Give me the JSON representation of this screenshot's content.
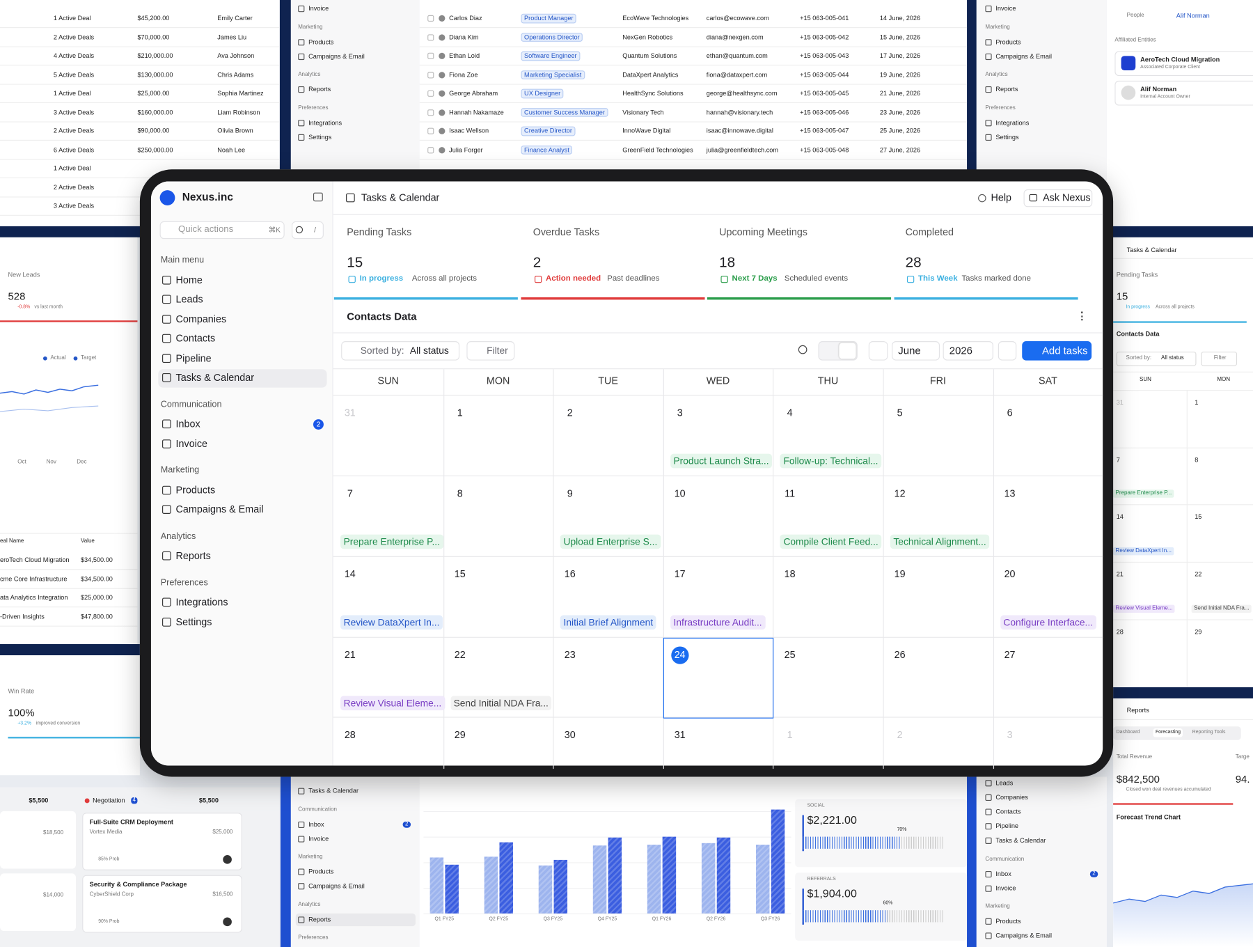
{
  "sidebar": {
    "brand": "Nexus.inc",
    "quick_actions": "Quick actions",
    "shortcut": "⌘K",
    "slash": "/",
    "active": "Tasks & Calendar",
    "inbox_badge": 2,
    "sections": [
      {
        "title": "Main menu",
        "items": [
          "Home",
          "Leads",
          "Companies",
          "Contacts",
          "Pipeline",
          "Tasks & Calendar"
        ]
      },
      {
        "title": "Communication",
        "items": [
          "Inbox",
          "Invoice"
        ]
      },
      {
        "title": "Marketing",
        "items": [
          "Products",
          "Campaigns & Email"
        ]
      },
      {
        "title": "Analytics",
        "items": [
          "Reports"
        ]
      },
      {
        "title": "Preferences",
        "items": [
          "Integrations",
          "Settings"
        ]
      }
    ]
  },
  "header": {
    "title": "Tasks & Calendar",
    "help": "Help",
    "ask": "Ask Nexus"
  },
  "stats": [
    {
      "label": "Pending Tasks",
      "value": 15,
      "tag": "In progress",
      "note": "Across all projects",
      "color": "#3bb0e0"
    },
    {
      "label": "Overdue Tasks",
      "value": 2,
      "tag": "Action needed",
      "note": "Past deadlines",
      "color": "#e03b3b"
    },
    {
      "label": "Upcoming Meetings",
      "value": 18,
      "tag": "Next 7 Days",
      "note": "Scheduled events",
      "color": "#2a9d4a"
    },
    {
      "label": "Completed",
      "value": 28,
      "tag": "This Week",
      "note": "Tasks marked done",
      "color": "#3bb0e0"
    }
  ],
  "panel": {
    "title": "Contacts Data",
    "sorted_label": "Sorted by:",
    "sorted_value": "All status",
    "filter": "Filter",
    "month": "June",
    "year": 2026,
    "add": "Add tasks"
  },
  "calendar": {
    "weekdays": [
      "SUN",
      "MON",
      "TUE",
      "WED",
      "THU",
      "FRI",
      "SAT"
    ],
    "weeks": [
      [
        {
          "day": 31,
          "muted": true
        },
        {
          "day": 1
        },
        {
          "day": 2
        },
        {
          "day": 3,
          "event": {
            "text": "Product Launch Stra...",
            "color": "green"
          }
        },
        {
          "day": 4,
          "event": {
            "text": "Follow-up: Technical...",
            "color": "green"
          }
        },
        {
          "day": 5
        },
        {
          "day": 6
        }
      ],
      [
        {
          "day": 7,
          "event": {
            "text": "Prepare Enterprise P...",
            "color": "green"
          }
        },
        {
          "day": 8
        },
        {
          "day": 9,
          "event": {
            "text": "Upload Enterprise S...",
            "color": "green"
          }
        },
        {
          "day": 10
        },
        {
          "day": 11,
          "event": {
            "text": "Compile Client Feed...",
            "color": "green"
          }
        },
        {
          "day": 12,
          "event": {
            "text": "Technical Alignment...",
            "color": "green"
          }
        },
        {
          "day": 13
        }
      ],
      [
        {
          "day": 14,
          "event": {
            "text": "Review DataXpert In...",
            "color": "blue"
          }
        },
        {
          "day": 15
        },
        {
          "day": 16,
          "event": {
            "text": "Initial Brief Alignment",
            "color": "blue"
          }
        },
        {
          "day": 17,
          "event": {
            "text": "Infrastructure Audit...",
            "color": "purple"
          }
        },
        {
          "day": 18
        },
        {
          "day": 19
        },
        {
          "day": 20,
          "event": {
            "text": "Configure Interface...",
            "color": "purple"
          }
        }
      ],
      [
        {
          "day": 21,
          "event": {
            "text": "Review Visual Eleme...",
            "color": "purple"
          }
        },
        {
          "day": 22,
          "event": {
            "text": "Send Initial NDA Fra...",
            "color": "gray"
          }
        },
        {
          "day": 23
        },
        {
          "day": 24,
          "today": true
        },
        {
          "day": 25
        },
        {
          "day": 26
        },
        {
          "day": 27
        }
      ],
      [
        {
          "day": 28
        },
        {
          "day": 29
        },
        {
          "day": 30
        },
        {
          "day": 31
        },
        {
          "day": 1,
          "muted": true
        },
        {
          "day": 2,
          "muted": true
        },
        {
          "day": 3,
          "muted": true
        }
      ]
    ]
  },
  "background": {
    "deals": [
      [
        "1 Active Deal",
        "$45,200.00",
        "Emily Carter"
      ],
      [
        "2 Active Deals",
        "$70,000.00",
        "James Liu"
      ],
      [
        "4 Active Deals",
        "$210,000.00",
        "Ava Johnson"
      ],
      [
        "5 Active Deals",
        "$130,000.00",
        "Chris Adams"
      ],
      [
        "1 Active Deal",
        "$25,000.00",
        "Sophia Martinez"
      ],
      [
        "3 Active Deals",
        "$160,000.00",
        "Liam Robinson"
      ],
      [
        "2 Active Deals",
        "$90,000.00",
        "Olivia Brown"
      ],
      [
        "6 Active Deals",
        "$250,000.00",
        "Noah Lee"
      ],
      [
        "1 Active Deal"
      ],
      [
        "2 Active Deals"
      ],
      [
        "3 Active Deals"
      ]
    ],
    "top_menu": [
      {
        "t": "Invoice"
      },
      {
        "t": "Marketing",
        "h": true
      },
      {
        "t": "Products"
      },
      {
        "t": "Campaigns & Email"
      },
      {
        "t": "Analytics",
        "h": true
      },
      {
        "t": "Reports"
      },
      {
        "t": "Preferences",
        "h": true
      },
      {
        "t": "Integrations"
      },
      {
        "t": "Settings"
      }
    ],
    "contacts": [
      [
        "Carlos Diaz",
        "Product Manager",
        "EcoWave Technologies",
        "carlos@ecowave.com",
        "+15 063-005-041",
        "14 June, 2026"
      ],
      [
        "Diana Kim",
        "Operations Director",
        "NexGen Robotics",
        "diana@nexgen.com",
        "+15 063-005-042",
        "15 June, 2026"
      ],
      [
        "Ethan Loid",
        "Software Engineer",
        "Quantum Solutions",
        "ethan@quantum.com",
        "+15 063-005-043",
        "17 June, 2026"
      ],
      [
        "Fiona Zoe",
        "Marketing Specialist",
        "DataXpert Analytics",
        "fiona@dataxpert.com",
        "+15 063-005-044",
        "19 June, 2026"
      ],
      [
        "George Abraham",
        "UX Designer",
        "HealthSync Solutions",
        "george@healthsync.com",
        "+15 063-005-045",
        "21 June, 2026"
      ],
      [
        "Hannah Nakamaze",
        "Customer Success Manager",
        "Visionary Tech",
        "hannah@visionary.tech",
        "+15 063-005-046",
        "23 June, 2026"
      ],
      [
        "Isaac Wellson",
        "Creative Director",
        "InnoWave Digital",
        "isaac@innowave.digital",
        "+15 063-005-047",
        "25 June, 2026"
      ],
      [
        "Julia Forger",
        "Finance Analyst",
        "GreenField Technologies",
        "julia@greenfieldtech.com",
        "+15 063-005-048",
        "27 June, 2026"
      ]
    ],
    "entities": {
      "people_label": "People",
      "people_value": "Alif Norman",
      "section": "Affiliated Entities",
      "cards": [
        [
          "AeroTech Cloud Migration",
          "Associated Corporate Client"
        ],
        [
          "Alif Norman",
          "Internal Account Owner"
        ]
      ]
    },
    "leads": {
      "label": "New Leads",
      "value": 528,
      "change": "-0.8%",
      "note": "vs last month",
      "legend": [
        "Actual",
        "Target"
      ],
      "months": [
        "Oct",
        "Nov",
        "Dec"
      ]
    },
    "deal_table": {
      "header": [
        "eal Name",
        "Value"
      ],
      "rows": [
        [
          "eroTech Cloud Migration",
          "$34,500.00"
        ],
        [
          "cme Core Infrastructure",
          "$34,500.00"
        ],
        [
          "ata Analytics Integration",
          "$25,000.00"
        ],
        [
          "-Driven Insights",
          "$47,800.00"
        ]
      ]
    },
    "win": {
      "label": "Win Rate",
      "value": "100%",
      "change": "+3.2%",
      "note": "improved conversion"
    },
    "kanban": {
      "left_amount": "$5,500",
      "left_values": [
        "$18,500",
        "$14,000"
      ],
      "name": "Negotiation",
      "count": 4,
      "amount": "$5,500",
      "cards": [
        {
          "title": "Full-Suite CRM Deployment",
          "company": "Vortex Media",
          "amount": "$25,000",
          "prob": "85% Prob"
        },
        {
          "title": "Security & Compliance Package",
          "company": "CyberShield Corp",
          "amount": "$16,500",
          "prob": "90% Prob"
        }
      ]
    },
    "bottom_menu": [
      {
        "t": "Tasks & Calendar"
      },
      {
        "t": "Communication",
        "h": true
      },
      {
        "t": "Inbox",
        "badge": 2
      },
      {
        "t": "Invoice"
      },
      {
        "t": "Marketing",
        "h": true
      },
      {
        "t": "Products"
      },
      {
        "t": "Campaigns & Email"
      },
      {
        "t": "Analytics",
        "h": true
      },
      {
        "t": "Reports",
        "active": true
      },
      {
        "t": "Preferences",
        "h": true
      }
    ],
    "bars": {
      "categories": [
        "Q1 FY25",
        "Q2 FY25",
        "Q3 FY25",
        "Q4 FY25",
        "Q1 FY26",
        "Q2 FY26",
        "Q3 FY26"
      ],
      "ylim": [
        0,
        140
      ],
      "series": [
        {
          "color": "#9db4ee",
          "values": [
            70,
            71,
            60,
            85,
            86,
            88,
            86
          ]
        },
        {
          "color": "#3b5ee0",
          "values": [
            61,
            89,
            67,
            95,
            96,
            95,
            130
          ]
        }
      ]
    },
    "sources": [
      {
        "label": "SOCIAL",
        "value": "$2,221.00",
        "pct": 70,
        "pct_label": "70%"
      },
      {
        "label": "REFERRALS",
        "value": "$1,904.00",
        "pct": 60,
        "pct_label": "60%"
      }
    ],
    "right_menu": [
      {
        "t": "Leads"
      },
      {
        "t": "Companies"
      },
      {
        "t": "Contacts"
      },
      {
        "t": "Pipeline"
      },
      {
        "t": "Tasks & Calendar"
      },
      {
        "t": "Communication",
        "h": true
      },
      {
        "t": "Inbox",
        "badge": 2
      },
      {
        "t": "Invoice"
      },
      {
        "t": "Marketing",
        "h": true
      },
      {
        "t": "Products"
      },
      {
        "t": "Campaigns & Email"
      }
    ],
    "mini": {
      "title": "Tasks & Calendar",
      "stat_label": "Pending Tasks",
      "stat_value": 15,
      "stat_tag": "In progress",
      "stat_note": "Across all projects",
      "panel": "Contacts Data",
      "sorted_label": "Sorted by:",
      "sorted_value": "All status",
      "filter": "Filter",
      "weekdays": [
        "SUN",
        "MON"
      ],
      "days": [
        [
          31,
          1
        ],
        [
          7,
          8
        ],
        [
          14,
          15
        ],
        [
          21,
          22
        ],
        [
          28,
          29
        ]
      ],
      "events": [
        [
          "Prepare Enterprise P..."
        ],
        [
          "Review DataXpert In..."
        ],
        [
          "Review Visual Eleme...",
          "Send Initial NDA Fra..."
        ]
      ]
    },
    "reports": {
      "title": "Reports",
      "tabs": [
        "Dashboard",
        "Forecasting",
        "Reporting Tools"
      ],
      "active_tab": 1,
      "metric": "Total Revenue",
      "value": "$842,500",
      "note": "Closed won deal revenues accumulated",
      "chart": "Forecast Trend Chart",
      "partial_label": "Targe",
      "partial_value": "94."
    }
  }
}
